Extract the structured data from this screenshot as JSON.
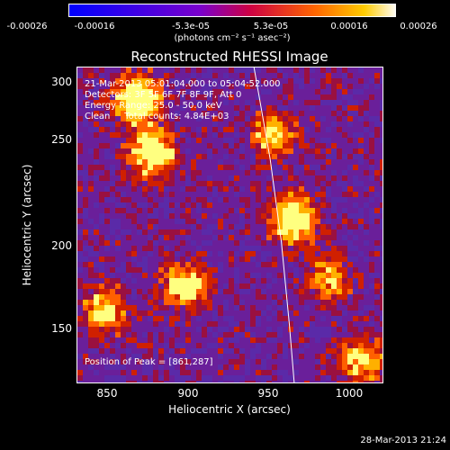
{
  "colorbar": {
    "ticks": [
      "-0.00026",
      "-0.00016",
      "-5.3e-05",
      "5.3e-05",
      "0.00016",
      "0.00026"
    ],
    "units": "(photons cm⁻² s⁻¹ asec⁻²)",
    "colors": [
      "#0000ff",
      "#7a00cc",
      "#cc0044",
      "#ff6600",
      "#ffcc00",
      "#ffffff"
    ]
  },
  "chart_data": {
    "type": "heatmap",
    "title": "Reconstructed RHESSI Image",
    "xlabel": "Heliocentric X (arcsec)",
    "ylabel": "Heliocentric Y (arcsec)",
    "x_ticks": [
      "850",
      "900",
      "950",
      "1000"
    ],
    "y_ticks": [
      "150",
      "200",
      "250",
      "300"
    ],
    "xlim": [
      825,
      1015
    ],
    "ylim": [
      115,
      305
    ],
    "annotations": {
      "time": "21-Mar-2013 05:01:04.000 to 05:04:52.000",
      "detectors": "Detectors: 3F 5F 6F 7F 8F 9F, Att 0",
      "energy": "Energy Range: 25.0 - 50.0 keV",
      "method": "Clean     Total counts: 4.84E+03",
      "peak": "Position of Peak = [861,287]"
    },
    "peak": [
      861,
      287
    ],
    "limb_curve": [
      [
        935,
        305
      ],
      [
        945,
        250
      ],
      [
        952,
        200
      ],
      [
        957,
        150
      ],
      [
        960,
        115
      ]
    ],
    "colorscale_range": [
      -0.00026,
      0.00026
    ]
  },
  "footer": {
    "timestamp": "28-Mar-2013 21:24"
  }
}
